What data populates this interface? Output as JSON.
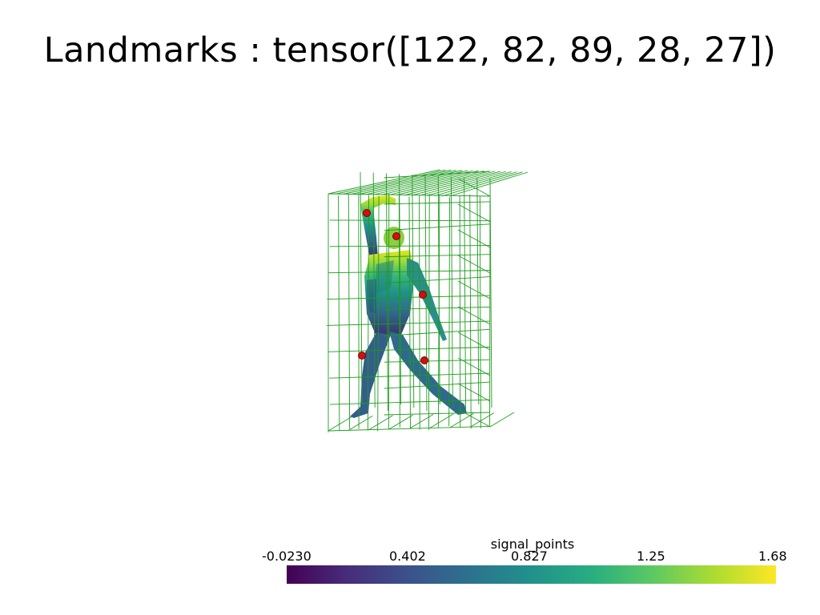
{
  "title": "Landmarks : tensor([122,  82,  89,  28,  27])",
  "colors": {
    "wireframe": "#1e9b1e",
    "landmark": "#d11010",
    "background": "#ffffff"
  },
  "landmarks": [
    122,
    82,
    89,
    28,
    27
  ],
  "colorbar": {
    "title": "signal_points",
    "colormap": "viridis",
    "ticks": [
      "-0.0230",
      "0.402",
      "0.827",
      "1.25",
      "1.68"
    ],
    "range": [
      -0.023,
      1.68
    ]
  }
}
